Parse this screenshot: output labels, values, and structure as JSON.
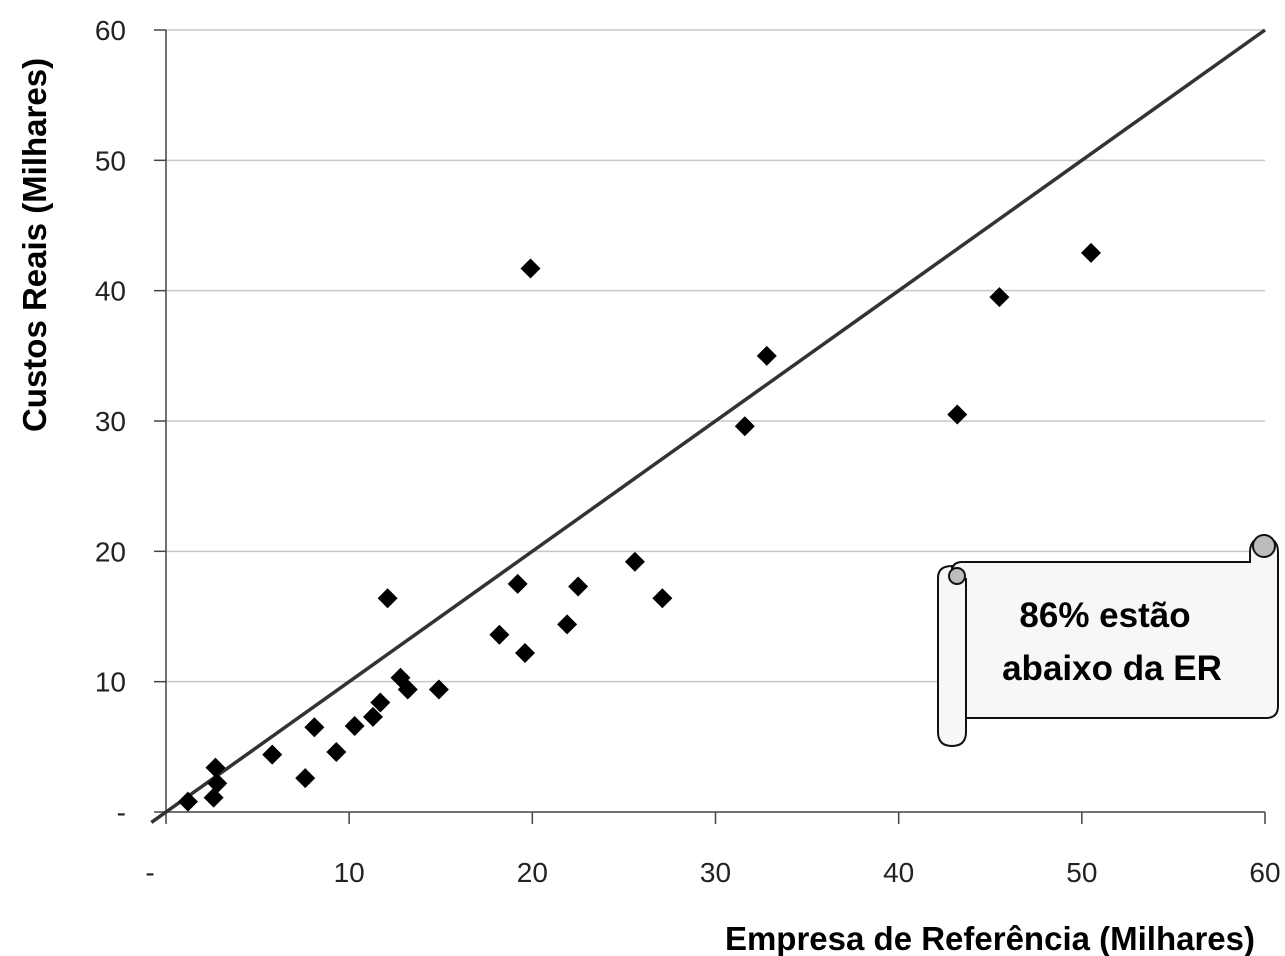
{
  "chart_data": {
    "type": "scatter",
    "xlabel": "Empresa de Referência (Milhares)",
    "ylabel": "Custos Reais (Milhares)",
    "xlim": [
      0,
      60
    ],
    "ylim": [
      0,
      60
    ],
    "x_ticks": [
      0,
      10,
      20,
      30,
      40,
      50,
      60
    ],
    "x_tick_labels": [
      "-",
      "10",
      "20",
      "30",
      "40",
      "50",
      "60"
    ],
    "y_ticks": [
      0,
      10,
      20,
      30,
      40,
      50,
      60
    ],
    "y_tick_labels": [
      "-",
      "10",
      "20",
      "30",
      "40",
      "50",
      "60"
    ],
    "grid": "horizontal",
    "legend": "none",
    "marker": "diamond",
    "marker_color": "#000000",
    "points": [
      {
        "x": 1.2,
        "y": 0.8
      },
      {
        "x": 2.6,
        "y": 1.1
      },
      {
        "x": 2.8,
        "y": 2.2
      },
      {
        "x": 2.7,
        "y": 3.4
      },
      {
        "x": 5.8,
        "y": 4.4
      },
      {
        "x": 7.6,
        "y": 2.6
      },
      {
        "x": 8.1,
        "y": 6.5
      },
      {
        "x": 9.3,
        "y": 4.6
      },
      {
        "x": 10.3,
        "y": 6.6
      },
      {
        "x": 11.3,
        "y": 7.3
      },
      {
        "x": 11.7,
        "y": 8.4
      },
      {
        "x": 12.1,
        "y": 16.4
      },
      {
        "x": 12.8,
        "y": 10.3
      },
      {
        "x": 13.2,
        "y": 9.4
      },
      {
        "x": 14.9,
        "y": 9.4
      },
      {
        "x": 18.2,
        "y": 13.6
      },
      {
        "x": 19.2,
        "y": 17.5
      },
      {
        "x": 19.6,
        "y": 12.2
      },
      {
        "x": 19.9,
        "y": 41.7
      },
      {
        "x": 21.9,
        "y": 14.4
      },
      {
        "x": 22.5,
        "y": 17.3
      },
      {
        "x": 25.6,
        "y": 19.2
      },
      {
        "x": 27.1,
        "y": 16.4
      },
      {
        "x": 31.6,
        "y": 29.6
      },
      {
        "x": 32.8,
        "y": 35.0
      },
      {
        "x": 43.2,
        "y": 30.5
      },
      {
        "x": 45.5,
        "y": 39.5
      },
      {
        "x": 50.5,
        "y": 42.9
      }
    ],
    "reference_line": {
      "x": [
        -0.8,
        60
      ],
      "y": [
        -0.8,
        60
      ],
      "color": "#333333"
    },
    "annotation": {
      "line1": "86% estão",
      "line2": "abaixo da ER"
    }
  }
}
